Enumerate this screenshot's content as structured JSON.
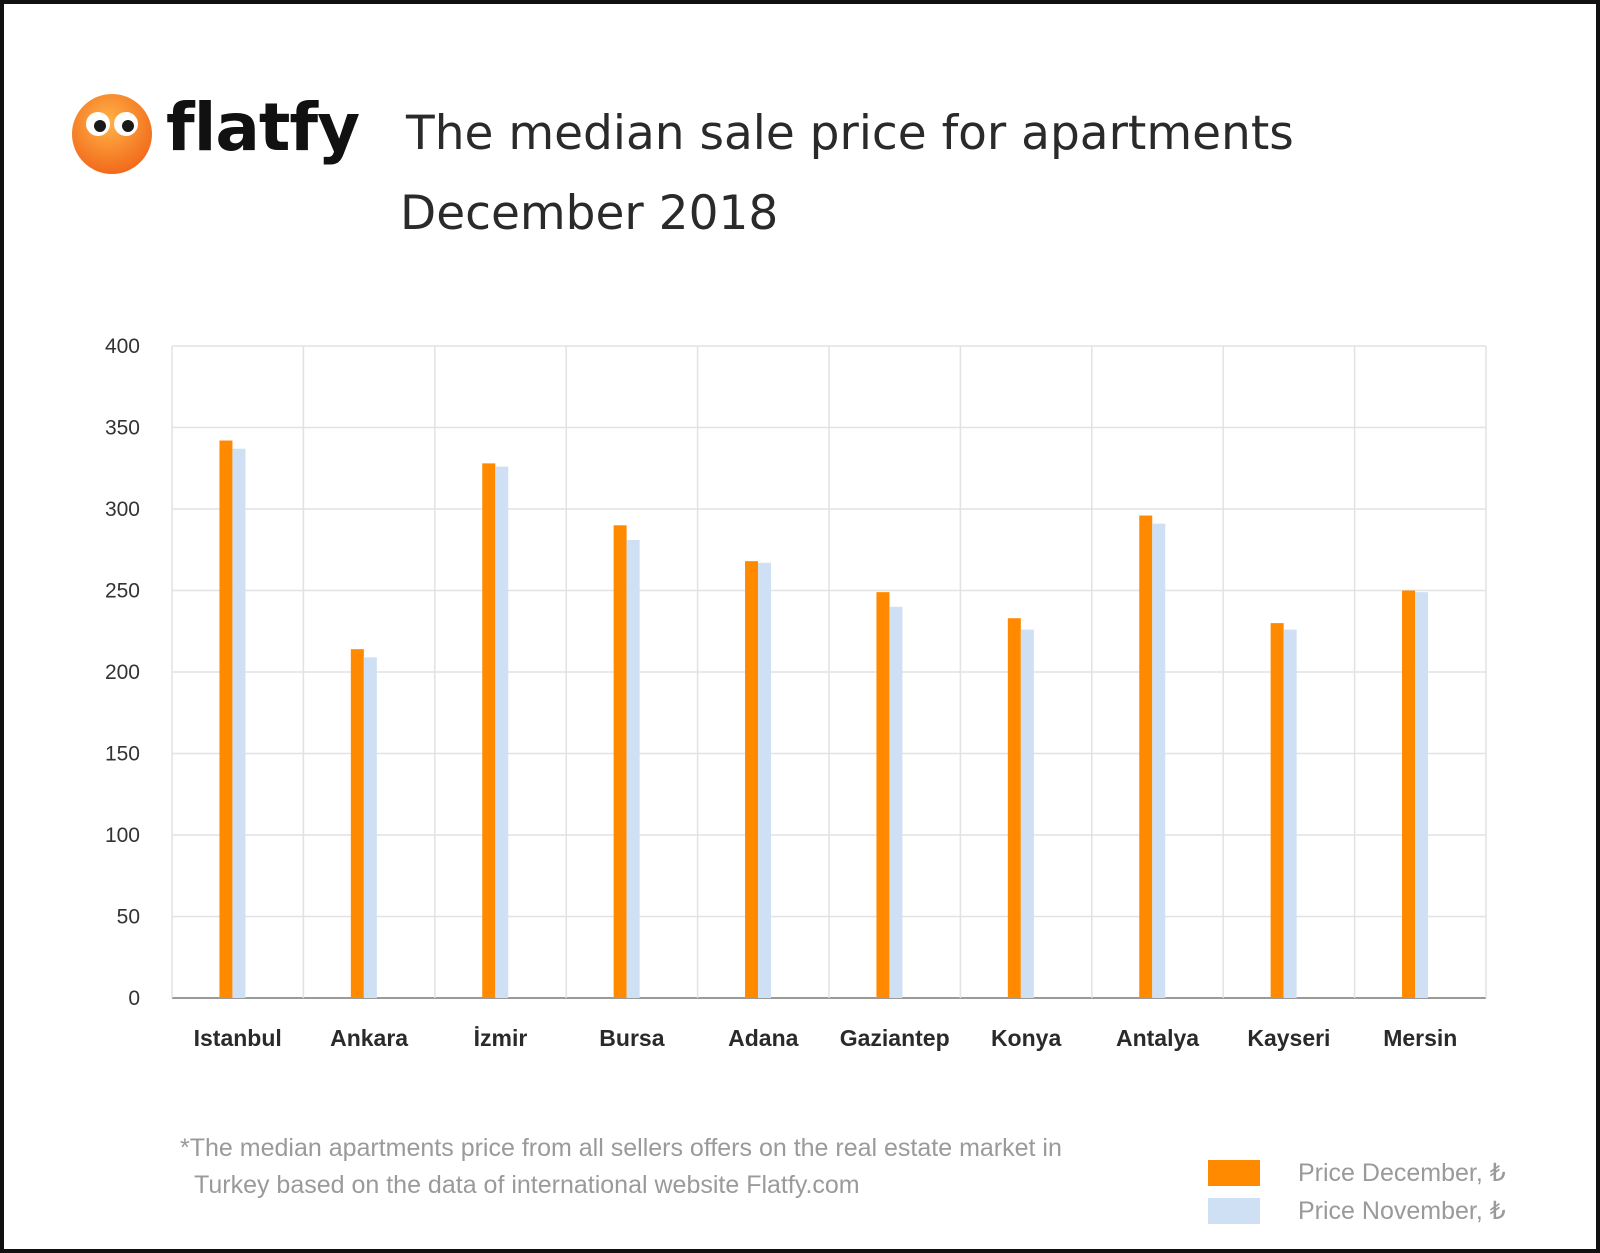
{
  "brand": {
    "name": "flatfy",
    "accent": "#f47c20"
  },
  "chart_data": {
    "type": "bar",
    "title": "The median sale price for apartments",
    "subtitle": "December 2018",
    "xlabel": "",
    "ylabel": "",
    "ylim": [
      0,
      400
    ],
    "yticks": [
      0,
      50,
      100,
      150,
      200,
      250,
      300,
      350,
      400
    ],
    "grid": true,
    "categories": [
      "Istanbul",
      "Ankara",
      "İzmir",
      "Bursa",
      "Adana",
      "Gaziantep",
      "Konya",
      "Antalya",
      "Kayseri",
      "Mersin"
    ],
    "series": [
      {
        "name": "Price December, ₺",
        "color": "#ff8a00",
        "values": [
          342,
          214,
          328,
          290,
          268,
          249,
          233,
          296,
          230,
          250
        ]
      },
      {
        "name": "Price November, ₺",
        "color": "#cfe0f5",
        "values": [
          337,
          209,
          326,
          281,
          267,
          240,
          226,
          291,
          226,
          249
        ]
      }
    ],
    "legend_position": "bottom-right",
    "footnote_line1": "*The median apartments price from all sellers offers on the real estate market in",
    "footnote_line2": "Turkey based on the data of international website Flatfy.com"
  }
}
